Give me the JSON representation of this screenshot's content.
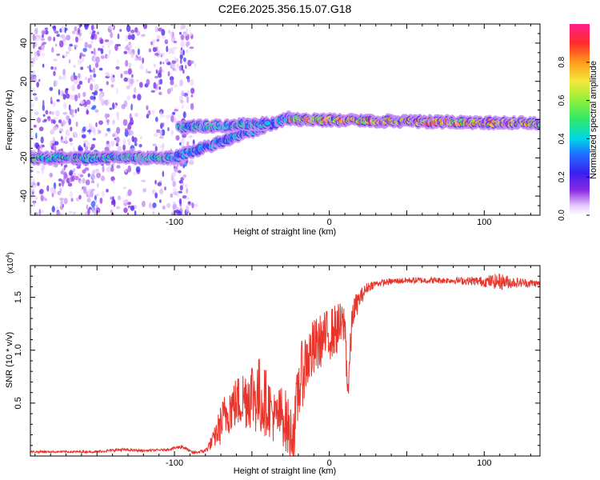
{
  "title": "C2E6.2025.356.15.07.G18",
  "colors": {
    "snr_line": "#e8342a",
    "frame": "#000000"
  },
  "chart_data": [
    {
      "type": "heatmap",
      "title": "C2E6.2025.356.15.07.G18",
      "xlabel": "Height of straight line (km)",
      "ylabel": "Frequency (Hz)",
      "xlim": [
        -193,
        136
      ],
      "ylim": [
        -50,
        50
      ],
      "xticks": [
        -100,
        0,
        100
      ],
      "yticks": [
        -40,
        -20,
        0,
        20,
        40
      ],
      "colorbar": {
        "label": "Normalized spectral amplitude",
        "range": [
          0,
          1
        ],
        "ticks": [
          "0.0",
          "0.2",
          "0.4",
          "0.6",
          "0.8"
        ],
        "tick_values": [
          0.0,
          0.2,
          0.4,
          0.6,
          0.8
        ],
        "colormap": "rainbow: white, violet, blue, cyan, green, yellow, orange, red, magenta"
      },
      "ridge_segments": [
        {
          "x_start": -193,
          "x_end": -100,
          "freq_start": -20,
          "freq_end": -20,
          "peak_amplitude": 0.55
        },
        {
          "x_start": -100,
          "x_end": -25,
          "freq_start": -20,
          "freq_end": 1,
          "peak_amplitude": 0.45
        },
        {
          "x_start": -97,
          "x_end": -40,
          "freq_start": -4,
          "freq_end": -2,
          "peak_amplitude": 0.5
        },
        {
          "x_start": -25,
          "x_end": 136,
          "freq_start": 0,
          "freq_end": -2,
          "peak_amplitude": 0.9
        }
      ],
      "noise_region": {
        "x_start": -193,
        "x_end": -85,
        "freq_min": -50,
        "freq_max": 50
      }
    },
    {
      "type": "line",
      "xlabel": "Height of straight line (km)",
      "ylabel": "SNR (10 * v/v)",
      "scale_note": "(x10^4)",
      "scale_note_base": "(x10",
      "scale_note_exp": "4",
      "scale_note_close": ")",
      "xlim": [
        -193,
        136
      ],
      "ylim": [
        0,
        1.8
      ],
      "xticks": [
        -100,
        0,
        100
      ],
      "yticks": [
        0.5,
        1.0,
        1.5
      ],
      "ytick_labels": [
        "0.5",
        "1.0",
        "1.5"
      ],
      "series": [
        {
          "name": "SNR",
          "x": [
            -193,
            -170,
            -150,
            -135,
            -120,
            -105,
            -95,
            -88,
            -80,
            -75,
            -70,
            -65,
            -60,
            -55,
            -50,
            -45,
            -40,
            -35,
            -30,
            -25,
            -22,
            -20,
            -15,
            -10,
            -5,
            0,
            5,
            10,
            12,
            15,
            20,
            25,
            30,
            40,
            50,
            60,
            80,
            100,
            110,
            120,
            136
          ],
          "values": [
            0.04,
            0.04,
            0.04,
            0.06,
            0.05,
            0.06,
            0.09,
            0.03,
            0.05,
            0.15,
            0.3,
            0.45,
            0.5,
            0.55,
            0.6,
            0.55,
            0.5,
            0.35,
            0.4,
            0.2,
            0.3,
            0.65,
            0.9,
            1.0,
            1.1,
            1.15,
            1.2,
            1.25,
            0.6,
            1.35,
            1.5,
            1.6,
            1.63,
            1.65,
            1.66,
            1.66,
            1.66,
            1.65,
            1.65,
            1.64,
            1.63
          ],
          "noise_amplitude": [
            0.01,
            0.01,
            0.01,
            0.015,
            0.01,
            0.01,
            0.02,
            0.01,
            0.02,
            0.08,
            0.2,
            0.25,
            0.25,
            0.3,
            0.35,
            0.4,
            0.3,
            0.25,
            0.3,
            0.3,
            0.3,
            0.35,
            0.3,
            0.3,
            0.25,
            0.25,
            0.25,
            0.2,
            0.2,
            0.15,
            0.08,
            0.05,
            0.03,
            0.03,
            0.03,
            0.03,
            0.03,
            0.05,
            0.08,
            0.05,
            0.03
          ]
        }
      ]
    }
  ]
}
